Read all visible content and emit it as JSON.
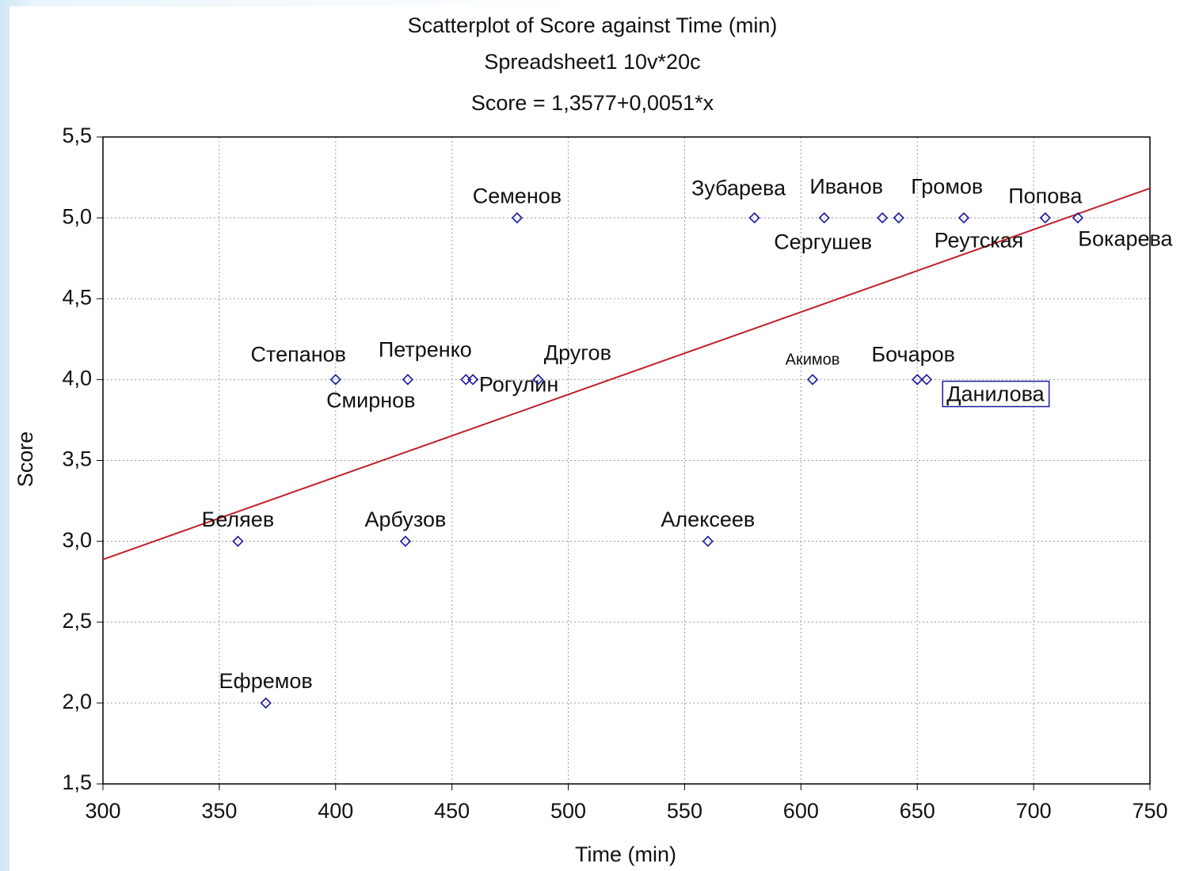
{
  "chart_data": {
    "type": "scatter",
    "title": "Scatterplot of Score against Time (min)",
    "subtitle": "Spreadsheet1 10v*20c",
    "equation": "Score = 1,3577+0,0051*x",
    "x_label": "Time (min)",
    "y_label": "Score",
    "x": [
      478,
      580,
      610,
      635,
      642,
      670,
      705,
      719,
      400,
      431,
      456,
      459,
      487,
      605,
      650,
      654,
      358,
      430,
      560,
      370
    ],
    "values": [
      5,
      5,
      5,
      5,
      5,
      5,
      5,
      5,
      4,
      4,
      4,
      4,
      4,
      4,
      4,
      4,
      3,
      3,
      3,
      2
    ],
    "labels": [
      "Семенов",
      "Зубарева",
      "Иванов",
      "Сергушев",
      "Громов",
      "Реутская",
      "Попова",
      "Бокарева",
      "Степанов",
      "Петренко",
      "Смирнов",
      "Рогулин",
      "Другов",
      "Акимов",
      "Бочаров",
      "Данилова",
      "Беляев",
      "Арбузов",
      "Алексеев",
      "Ефремов"
    ],
    "color": "#1a1aa0",
    "regression": {
      "intercept": 1.3577,
      "slope": 0.0051,
      "color": "#c0202a"
    },
    "xlim": [
      300,
      750
    ],
    "xticks": [
      300,
      350,
      400,
      450,
      500,
      550,
      600,
      650,
      700,
      750
    ],
    "ylim": [
      1.5,
      5.5
    ],
    "yticks": [
      {
        "value": 1.5,
        "label": "1,5"
      },
      {
        "value": 2.0,
        "label": "2,0"
      },
      {
        "value": 2.5,
        "label": "2,5"
      },
      {
        "value": 3.0,
        "label": "3,0"
      },
      {
        "value": 3.5,
        "label": "3,5"
      },
      {
        "value": 4.0,
        "label": "4,0"
      },
      {
        "value": 4.5,
        "label": "4,5"
      },
      {
        "value": 5.0,
        "label": "5,0"
      },
      {
        "value": 5.5,
        "label": "5,5"
      }
    ],
    "grid": true
  }
}
